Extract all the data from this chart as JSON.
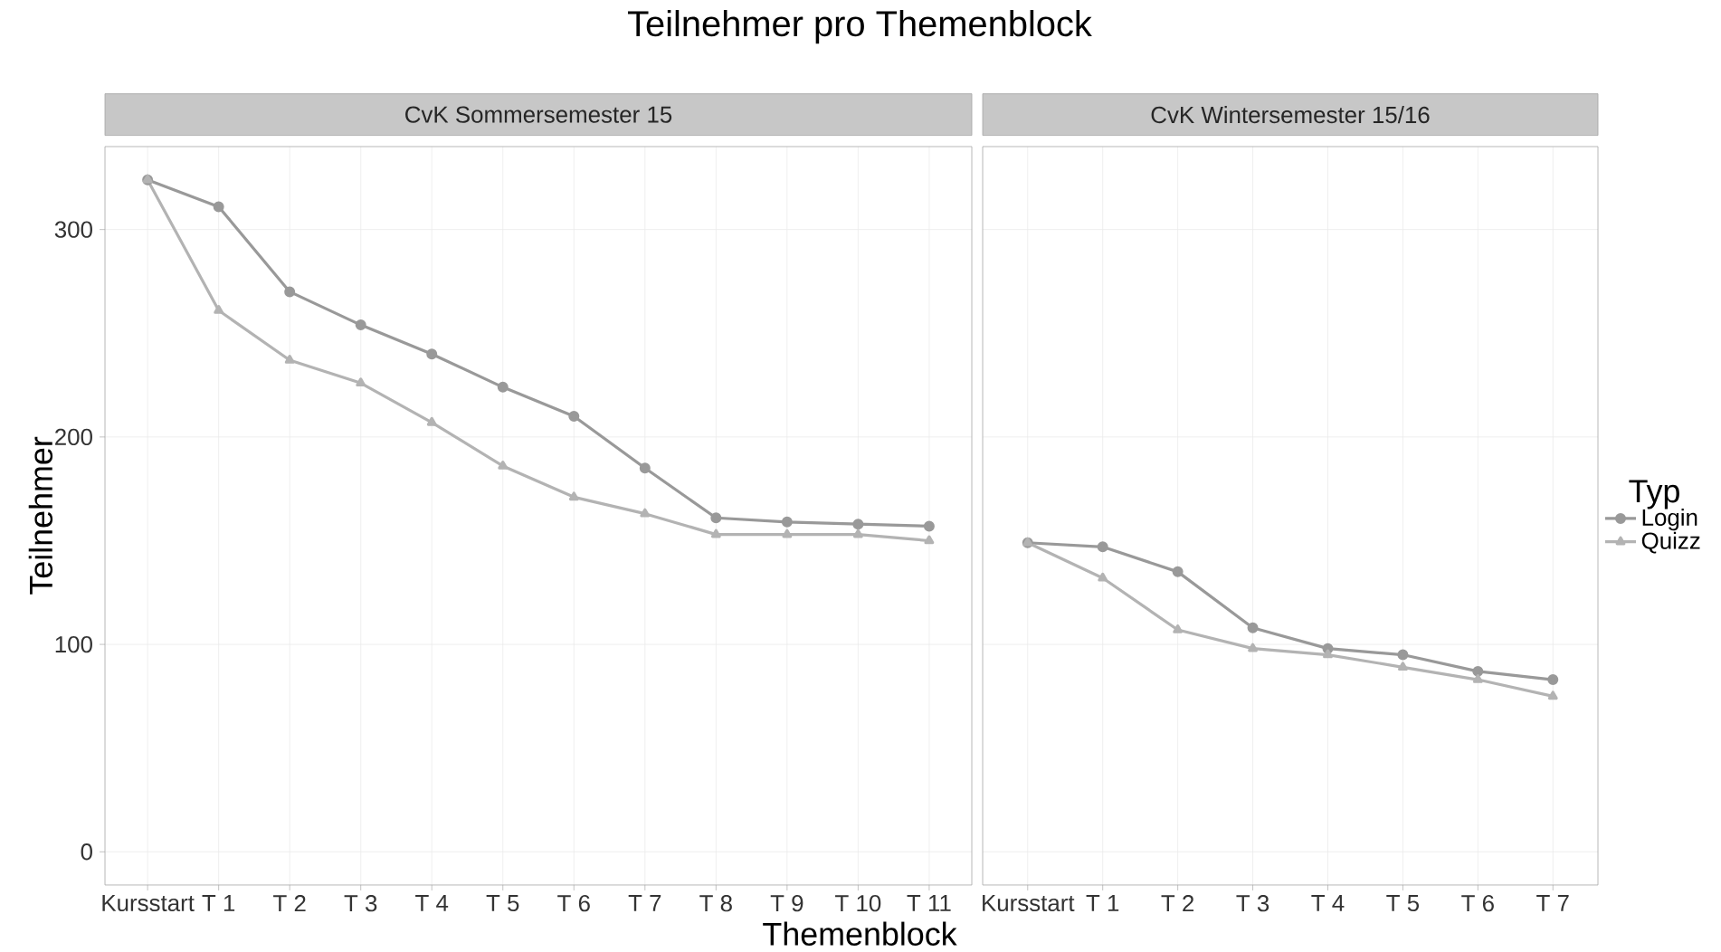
{
  "chart_data": [
    {
      "type": "line",
      "title": "Teilnehmer pro Themenblock",
      "subtitle": "CvK Sommersemester 15",
      "xlabel": "Themenblock",
      "ylabel": "Teilnehmer",
      "categories": [
        "Kursstart",
        "T 1",
        "T 2",
        "T 3",
        "T 4",
        "T 5",
        "T 6",
        "T 7",
        "T 8",
        "T 9",
        "T 10",
        "T 11"
      ],
      "series": [
        {
          "color": "#999999",
          "marker": "circle",
          "values": [
            324,
            311,
            270,
            254,
            240,
            224,
            210,
            185,
            161,
            159,
            158,
            157
          ]
        },
        {
          "color": "#b3b3b3",
          "marker": "triangle",
          "values": [
            324,
            261,
            237,
            226,
            207,
            186,
            171,
            163,
            153,
            153,
            153,
            150
          ]
        }
      ],
      "ylim": [
        -16,
        340
      ],
      "yticks": [
        0,
        100,
        200,
        300
      ],
      "grid": true
    },
    {
      "type": "line",
      "subtitle": "CvK Wintersemester 15/16",
      "legend_title": "Typ",
      "legend": "right",
      "categories": [
        "Kursstart",
        "T 1",
        "T 2",
        "T 3",
        "T 4",
        "T 5",
        "T 6",
        "T 7"
      ],
      "series": [
        {
          "name": "Login",
          "color": "#999999",
          "marker": "circle",
          "values": [
            149,
            147,
            135,
            108,
            98,
            95,
            87,
            83
          ]
        },
        {
          "name": "Quizz",
          "color": "#b3b3b3",
          "marker": "triangle",
          "values": [
            149,
            132,
            107,
            98,
            95,
            89,
            83,
            75
          ]
        }
      ],
      "ylim": [
        -16,
        340
      ],
      "yticks": [
        0,
        100,
        200,
        300
      ],
      "grid": true,
      "tick_labels": "x"
    }
  ]
}
